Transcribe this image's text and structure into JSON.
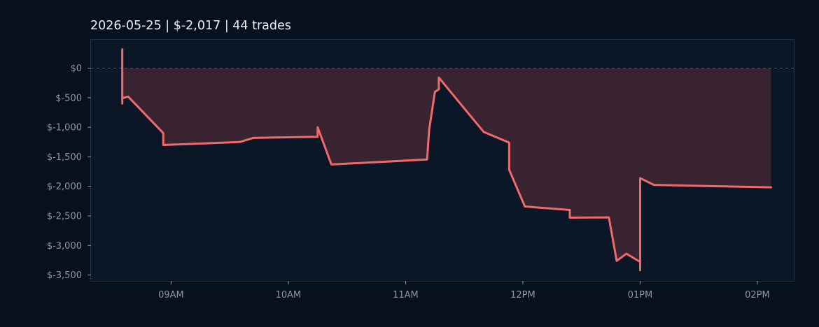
{
  "chart_data": {
    "type": "line",
    "title": "2026-05-25  |  $-2,017  |  44 trades",
    "xlabel": "",
    "ylabel": "",
    "x_ticks": [
      "09AM",
      "10AM",
      "11AM",
      "12PM",
      "01PM",
      "02PM"
    ],
    "x_tick_hours": [
      9,
      10,
      11,
      12,
      13,
      14
    ],
    "y_ticks": [
      "$0",
      "$-500",
      "$-1,000",
      "$-1,500",
      "$-2,000",
      "$-2,500",
      "$-3,000",
      "$-3,500"
    ],
    "y_tick_values": [
      0,
      -500,
      -1000,
      -1500,
      -2000,
      -2500,
      -3000,
      -3500
    ],
    "xlim": [
      "08:19",
      "14:19"
    ],
    "ylim": [
      -3600,
      480
    ],
    "zero_line": "dashed",
    "grid": false,
    "series": [
      {
        "color": "#ef6b6b",
        "fill_color": "#3a2330",
        "points": [
          [
            "08:35",
            320
          ],
          [
            "08:35",
            -600
          ],
          [
            "08:35",
            -510
          ],
          [
            "08:38",
            -480
          ],
          [
            "08:56",
            -1100
          ],
          [
            "08:56",
            -1300
          ],
          [
            "09:35",
            -1250
          ],
          [
            "09:42",
            -1180
          ],
          [
            "10:15",
            -1160
          ],
          [
            "10:15",
            -1000
          ],
          [
            "10:22",
            -1630
          ],
          [
            "11:11",
            -1545
          ],
          [
            "11:12",
            -1050
          ],
          [
            "11:15",
            -400
          ],
          [
            "11:17",
            -360
          ],
          [
            "11:17",
            -160
          ],
          [
            "11:40",
            -1080
          ],
          [
            "11:53",
            -1260
          ],
          [
            "11:53",
            -1720
          ],
          [
            "12:01",
            -2340
          ],
          [
            "12:24",
            -2400
          ],
          [
            "12:24",
            -2530
          ],
          [
            "12:44",
            -2525
          ],
          [
            "12:48",
            -3260
          ],
          [
            "12:53",
            -3140
          ],
          [
            "13:00",
            -3280
          ],
          [
            "13:00",
            -3420
          ],
          [
            "13:00",
            -1860
          ],
          [
            "13:07",
            -1975
          ],
          [
            "14:07",
            -2017
          ]
        ]
      }
    ]
  }
}
